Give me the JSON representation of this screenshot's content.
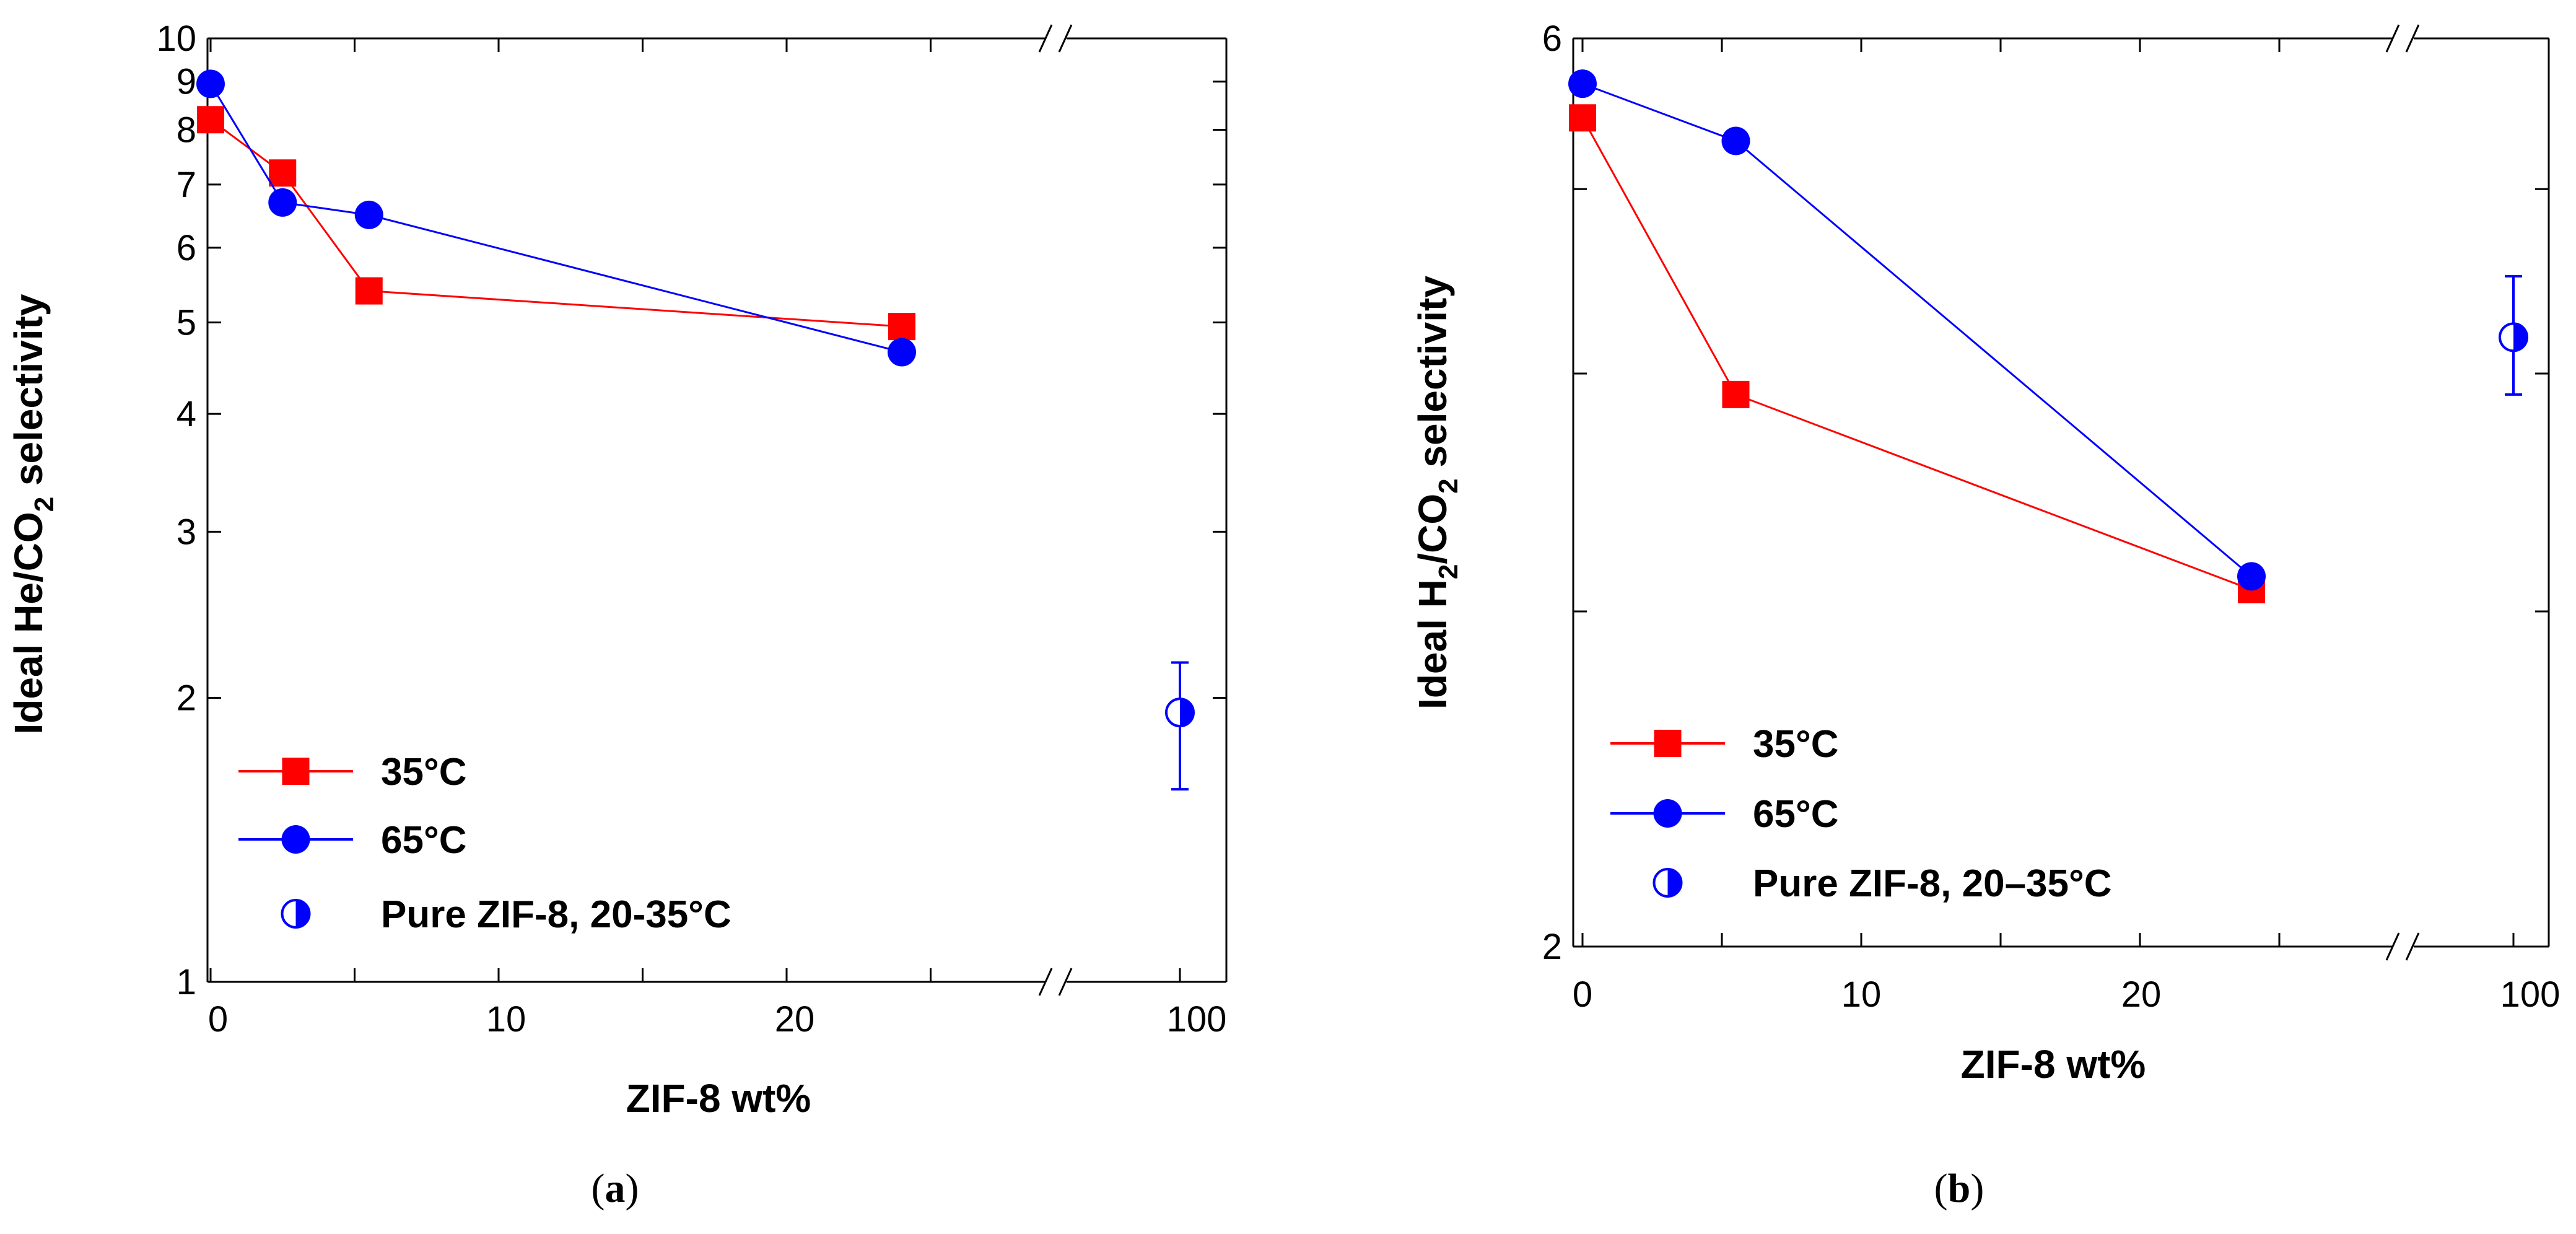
{
  "chart_data": [
    {
      "panel": "a",
      "type": "line",
      "y_scale": "log",
      "xlabel": "ZIF-8 wt%",
      "ylabel_parts": [
        "Ideal He/CO",
        "2",
        " selectivity"
      ],
      "ylim": [
        1,
        10
      ],
      "y_ticks": [
        "1",
        "2",
        "3",
        "4",
        "5",
        "6",
        "7",
        "8",
        "9",
        "10"
      ],
      "x_ticks": [
        "0",
        "10",
        "20",
        "100"
      ],
      "axis_break": "between 30 and 100",
      "series": [
        {
          "name": "35°C",
          "color": "#ff0000",
          "marker": "square",
          "x": [
            0,
            2.5,
            5.5,
            24
          ],
          "y": [
            8.2,
            7.2,
            5.4,
            4.95
          ]
        },
        {
          "name": "65°C",
          "color": "#0000ff",
          "marker": "circle",
          "x": [
            0,
            2.5,
            5.5,
            24
          ],
          "y": [
            8.95,
            6.7,
            6.5,
            4.65
          ]
        },
        {
          "name": "Pure ZIF-8, 20-35°C",
          "color": "#0000ff",
          "marker": "half-circle",
          "x": [
            100
          ],
          "y": [
            1.93
          ],
          "err_low": [
            1.6
          ],
          "err_high": [
            2.18
          ]
        }
      ],
      "legend": [
        "35°C",
        "65°C",
        "Pure ZIF-8, 20-35°C"
      ],
      "caption": "a"
    },
    {
      "panel": "b",
      "type": "line",
      "y_scale": "log",
      "xlabel": "ZIF-8 wt%",
      "ylabel_parts": [
        "Ideal H",
        "2",
        "/CO",
        "2",
        " selectivity"
      ],
      "ylim": [
        2,
        6
      ],
      "y_ticks": [
        "2",
        "6"
      ],
      "x_ticks": [
        "0",
        "10",
        "20",
        "100"
      ],
      "axis_break": "between 30 and 100",
      "series": [
        {
          "name": "35°C",
          "color": "#ff0000",
          "marker": "square",
          "x": [
            0,
            5.5,
            24
          ],
          "y": [
            5.45,
            3.9,
            3.08
          ]
        },
        {
          "name": "65°C",
          "color": "#0000ff",
          "marker": "circle",
          "x": [
            0,
            5.5,
            24
          ],
          "y": [
            5.68,
            5.3,
            3.13
          ]
        },
        {
          "name": "Pure ZIF-8, 20–35°C",
          "color": "#0000ff",
          "marker": "half-circle",
          "x": [
            100
          ],
          "y": [
            4.18
          ],
          "err_low": [
            3.9
          ],
          "err_high": [
            4.5
          ]
        }
      ],
      "legend": [
        "35°C",
        "65°C",
        "Pure ZIF-8, 20–35°C"
      ],
      "caption": "b"
    }
  ]
}
